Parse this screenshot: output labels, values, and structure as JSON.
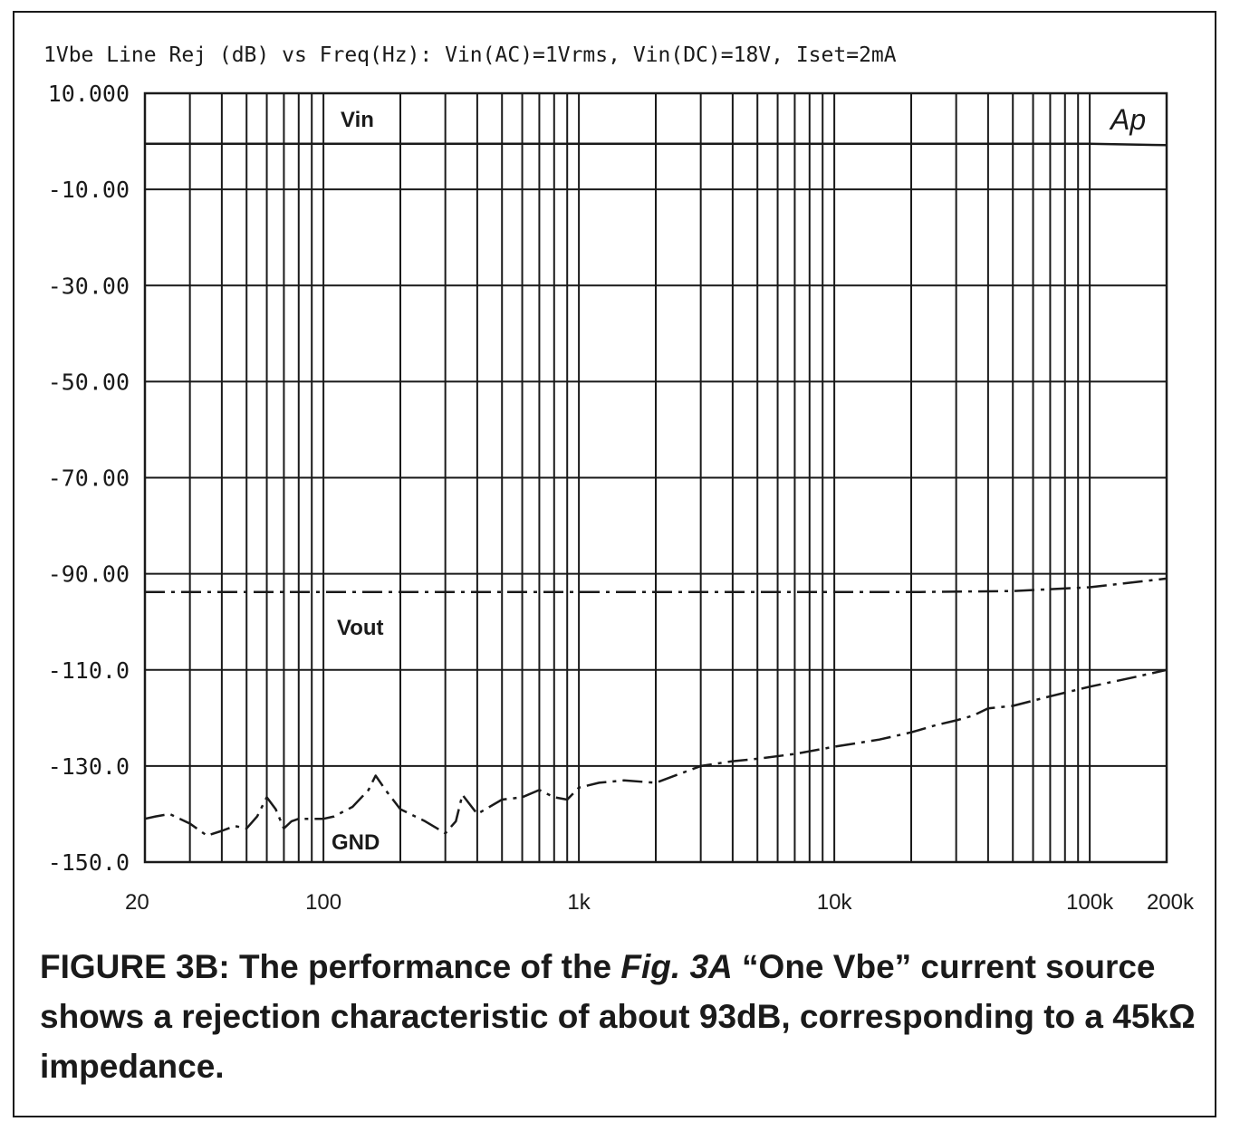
{
  "chart_data": {
    "type": "line",
    "title": "1Vbe Line Rej (dB) vs Freq(Hz): Vin(AC)=1Vrms, Vin(DC)=18V, Iset=2mA",
    "xscale": "log",
    "xlim": [
      20,
      200000
    ],
    "ylim": [
      -150,
      10
    ],
    "x_ticks": [
      {
        "value": 20,
        "label": "20"
      },
      {
        "value": 100,
        "label": "100"
      },
      {
        "value": 1000,
        "label": "1k"
      },
      {
        "value": 10000,
        "label": "10k"
      },
      {
        "value": 100000,
        "label": "100k"
      },
      {
        "value": 200000,
        "label": "200k"
      }
    ],
    "y_ticks": [
      {
        "value": 10,
        "label": "10.000"
      },
      {
        "value": -10,
        "label": "-10.00"
      },
      {
        "value": -30,
        "label": "-30.00"
      },
      {
        "value": -50,
        "label": "-50.00"
      },
      {
        "value": -70,
        "label": "-70.00"
      },
      {
        "value": -90,
        "label": "-90.00"
      },
      {
        "value": -110,
        "label": "-110.0"
      },
      {
        "value": -130,
        "label": "-130.0"
      },
      {
        "value": -150,
        "label": "-150.0"
      }
    ],
    "grid": true,
    "series": [
      {
        "name": "Vin",
        "style": "solid",
        "x": [
          20,
          100,
          200,
          500,
          1000,
          2000,
          5000,
          10000,
          20000,
          50000,
          100000,
          200000
        ],
        "y": [
          -0.5,
          -0.5,
          -0.5,
          -0.5,
          -0.5,
          -0.5,
          -0.5,
          -0.5,
          -0.5,
          -0.5,
          -0.5,
          -0.8
        ]
      },
      {
        "name": "Vout",
        "style": "dashdot",
        "x": [
          20,
          100,
          200,
          500,
          1000,
          2000,
          5000,
          10000,
          20000,
          50000,
          100000,
          200000
        ],
        "y": [
          -93.8,
          -93.8,
          -93.8,
          -93.8,
          -93.8,
          -93.8,
          -93.8,
          -93.8,
          -93.8,
          -93.6,
          -92.8,
          -91.0
        ]
      },
      {
        "name": "GND",
        "style": "dashdot",
        "x": [
          20,
          22,
          25,
          30,
          35,
          40,
          45,
          50,
          55,
          60,
          65,
          70,
          75,
          80,
          90,
          100,
          110,
          130,
          150,
          160,
          175,
          200,
          250,
          300,
          330,
          350,
          400,
          500,
          600,
          700,
          800,
          900,
          1000,
          1200,
          1500,
          2000,
          3000,
          4000,
          5000,
          7000,
          10000,
          15000,
          20000,
          25000,
          30000,
          35000,
          40000,
          50000,
          70000,
          100000,
          150000,
          200000
        ],
        "y": [
          -141,
          -140.5,
          -140,
          -142,
          -144.5,
          -143.5,
          -142.5,
          -143,
          -140.5,
          -136.5,
          -139,
          -143,
          -141.5,
          -141,
          -141,
          -141,
          -140.5,
          -138.5,
          -135,
          -132,
          -135,
          -139,
          -141.5,
          -144,
          -141.5,
          -136,
          -140,
          -137,
          -136.5,
          -135,
          -136.5,
          -137,
          -134.5,
          -133.5,
          -133,
          -133.5,
          -130,
          -129,
          -128.5,
          -127.5,
          -126,
          -124.5,
          -123,
          -121.5,
          -120.5,
          -119.5,
          -118,
          -117.5,
          -115.5,
          -113.5,
          -111.5,
          -110
        ]
      }
    ],
    "annotations": [
      "Vin",
      "Vout",
      "GND"
    ]
  },
  "logo": "Ap",
  "caption": {
    "prefix": "FIGURE 3B: The performance of the ",
    "figref": "Fig. 3A",
    "rest": " “One Vbe” current source shows a rejection characteristic of about 93dB, corresponding to a 45kΩ impedance."
  }
}
